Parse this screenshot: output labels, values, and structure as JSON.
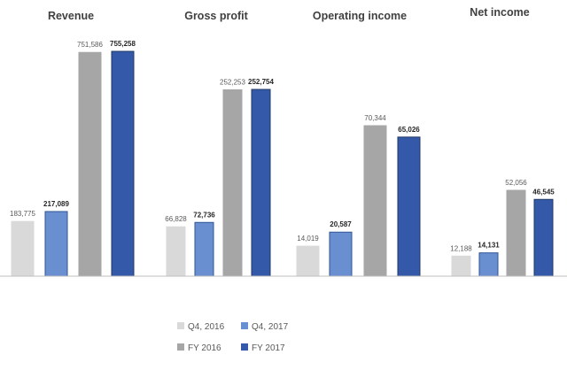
{
  "chart_data": {
    "type": "bar",
    "units_note": "",
    "legend": {
      "placement": "bottom-center",
      "entries": [
        {
          "name": "Q4, 2016",
          "color": "#d9d9d9"
        },
        {
          "name": "Q4, 2017",
          "color": "#6a8fd1"
        },
        {
          "name": "FY 2016",
          "color": "#a6a6a6"
        },
        {
          "name": "FY 2017",
          "color": "#3459a8"
        }
      ]
    },
    "series_names": [
      "Q4, 2016",
      "Q4, 2017",
      "FY 2016",
      "FY 2017"
    ],
    "bold_series": [
      false,
      true,
      false,
      true
    ],
    "panels": [
      {
        "title": "Revenue",
        "values": [
          183775,
          217089,
          751586,
          755258
        ],
        "labels": [
          "183,775",
          "217,089",
          "751,586",
          "755,258"
        ]
      },
      {
        "title": "Gross profit",
        "values": [
          66828,
          72736,
          252253,
          252754
        ],
        "labels": [
          "66,828",
          "72,736",
          "252,253",
          "252,754"
        ]
      },
      {
        "title": "Operating income",
        "values": [
          14019,
          20587,
          70344,
          65026
        ],
        "labels": [
          "14,019",
          "20,587",
          "70,344",
          "65,026"
        ]
      },
      {
        "title": "Net income",
        "values": [
          12188,
          14131,
          52056,
          46545
        ],
        "labels": [
          "12,188",
          "14,131",
          "52,056",
          "46,545"
        ]
      }
    ],
    "grid": false,
    "axes_visible": false
  }
}
